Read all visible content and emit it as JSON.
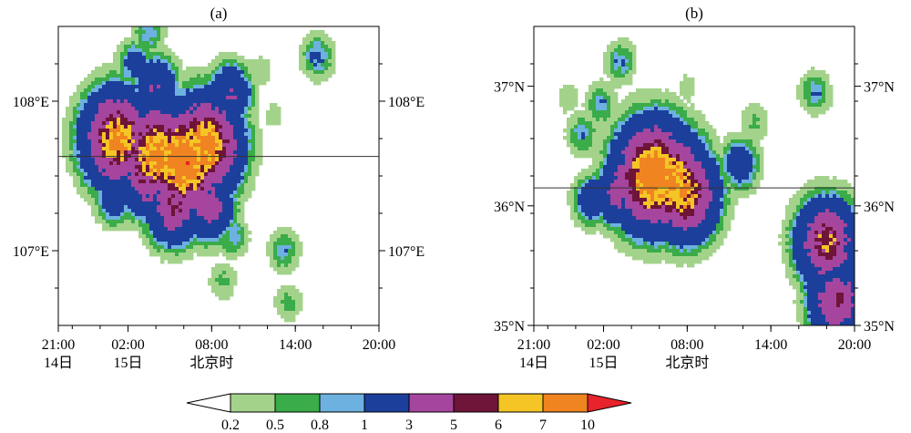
{
  "panels": [
    {
      "id": "a",
      "label": "(a)",
      "y_ticks": [
        {
          "label": "108°E",
          "value": 108.0
        },
        {
          "label": "107°E",
          "value": 107.0
        }
      ],
      "y_range": [
        106.5,
        108.5
      ],
      "x_range": [
        0,
        23
      ],
      "x_ticks": [
        {
          "line1": "21:00",
          "line2": "14日",
          "value": 0
        },
        {
          "line1": "02:00",
          "line2": "15日",
          "value": 5
        },
        {
          "line1": "08:00",
          "line2": "北京时",
          "value": 11
        },
        {
          "line1": "14:00",
          "line2": "",
          "value": 17
        },
        {
          "line1": "20:00",
          "line2": "",
          "value": 23
        }
      ],
      "reference_line": 107.63,
      "cells": [
        {
          "t": 4.2,
          "y": 107.75,
          "v": 7.5
        },
        {
          "t": 7.1,
          "y": 107.65,
          "v": 8
        },
        {
          "t": 9.0,
          "y": 107.6,
          "v": 9
        },
        {
          "t": 9.6,
          "y": 107.55,
          "v": 7
        },
        {
          "t": 10.5,
          "y": 107.7,
          "v": 8
        },
        {
          "t": 6.2,
          "y": 107.5,
          "v": 5
        },
        {
          "t": 8.3,
          "y": 107.3,
          "v": 5
        },
        {
          "t": 10.8,
          "y": 107.3,
          "v": 4
        },
        {
          "t": 7.0,
          "y": 108.1,
          "v": 3
        },
        {
          "t": 12.3,
          "y": 108.05,
          "v": 3
        },
        {
          "t": 5.5,
          "y": 108.25,
          "v": 1.5
        },
        {
          "t": 6.5,
          "y": 108.45,
          "v": 1
        },
        {
          "t": 13.0,
          "y": 107.6,
          "v": 1
        },
        {
          "t": 12.5,
          "y": 107.1,
          "v": 1
        },
        {
          "t": 16.2,
          "y": 107.0,
          "v": 1
        },
        {
          "t": 16.5,
          "y": 106.65,
          "v": 0.6
        },
        {
          "t": 18.6,
          "y": 108.3,
          "v": 1.2
        },
        {
          "t": 11.8,
          "y": 106.8,
          "v": 0.6
        },
        {
          "t": 4.0,
          "y": 107.35,
          "v": 2
        },
        {
          "t": 14.5,
          "y": 108.2,
          "v": 0.4
        },
        {
          "t": 15.5,
          "y": 107.9,
          "v": 0.3
        }
      ]
    },
    {
      "id": "b",
      "label": "(b)",
      "y_ticks": [
        {
          "label": "37°N",
          "value": 37.0
        },
        {
          "label": "36°N",
          "value": 36.0
        },
        {
          "label": "35°N",
          "value": 35.0
        }
      ],
      "y_range": [
        35.0,
        37.5
      ],
      "x_range": [
        0,
        23
      ],
      "x_ticks": [
        {
          "line1": "21:00",
          "line2": "14日",
          "value": 0
        },
        {
          "line1": "02:00",
          "line2": "15日",
          "value": 5
        },
        {
          "line1": "08:00",
          "line2": "北京时",
          "value": 11
        },
        {
          "line1": "14:00",
          "line2": "",
          "value": 17
        },
        {
          "line1": "20:00",
          "line2": "",
          "value": 23
        }
      ],
      "reference_line": 36.15,
      "cells": [
        {
          "t": 7.5,
          "y": 36.22,
          "v": 6
        },
        {
          "t": 8.6,
          "y": 36.25,
          "v": 9
        },
        {
          "t": 9.8,
          "y": 36.2,
          "v": 8
        },
        {
          "t": 10.8,
          "y": 36.1,
          "v": 7
        },
        {
          "t": 6.0,
          "y": 36.1,
          "v": 3.5
        },
        {
          "t": 4.2,
          "y": 36.05,
          "v": 2
        },
        {
          "t": 12.0,
          "y": 36.05,
          "v": 2
        },
        {
          "t": 14.8,
          "y": 36.35,
          "v": 2
        },
        {
          "t": 21.0,
          "y": 35.7,
          "v": 6
        },
        {
          "t": 21.7,
          "y": 35.2,
          "v": 5
        },
        {
          "t": 20.6,
          "y": 35.45,
          "v": 3
        },
        {
          "t": 4.8,
          "y": 36.85,
          "v": 1
        },
        {
          "t": 3.5,
          "y": 36.6,
          "v": 1
        },
        {
          "t": 6.2,
          "y": 37.2,
          "v": 1
        },
        {
          "t": 15.8,
          "y": 36.7,
          "v": 0.6
        },
        {
          "t": 20.2,
          "y": 36.95,
          "v": 1
        },
        {
          "t": 2.5,
          "y": 36.9,
          "v": 0.4
        },
        {
          "t": 11.0,
          "y": 37.0,
          "v": 0.3
        }
      ]
    }
  ],
  "colorbar": {
    "labels": [
      "0.2",
      "0.5",
      "0.8",
      "1",
      "3",
      "5",
      "6",
      "7",
      "10"
    ],
    "levels": [
      0.2,
      0.5,
      0.8,
      1,
      3,
      5,
      6,
      7,
      10
    ],
    "colors": [
      "#ffffff",
      "#a3d38b",
      "#3aac49",
      "#6cb1e0",
      "#1d3f9c",
      "#a6459d",
      "#6e1439",
      "#f4c525",
      "#f08420",
      "#e8232b"
    ]
  },
  "chart_data": [
    {
      "type": "heatmap",
      "panel": "a",
      "title": "(a)",
      "xlabel": "北京时",
      "x_tick_labels": [
        "21:00 14日",
        "02:00 15日",
        "08:00",
        "14:00",
        "20:00"
      ],
      "y_tick_labels": [
        "108°E",
        "107°E"
      ],
      "ylim": [
        106.5,
        108.5
      ],
      "levels": [
        0.2,
        0.5,
        0.8,
        1,
        3,
        5,
        6,
        7,
        10
      ]
    },
    {
      "type": "heatmap",
      "panel": "b",
      "title": "(b)",
      "xlabel": "北京时",
      "x_tick_labels": [
        "21:00 14日",
        "02:00 15日",
        "08:00",
        "14:00",
        "20:00"
      ],
      "y_tick_labels": [
        "37°N",
        "36°N",
        "35°N"
      ],
      "ylim": [
        35.0,
        37.5
      ],
      "levels": [
        0.2,
        0.5,
        0.8,
        1,
        3,
        5,
        6,
        7,
        10
      ]
    }
  ]
}
